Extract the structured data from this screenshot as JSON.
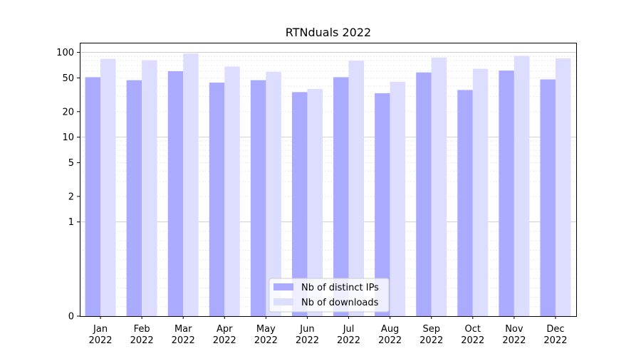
{
  "chart_data": {
    "type": "bar",
    "title": "RTNduals 2022",
    "xlabel": "",
    "ylabel": "",
    "yscale": "symlog",
    "ylim": [
      0,
      130
    ],
    "yticks": [
      0,
      1,
      2,
      5,
      10,
      20,
      50,
      100
    ],
    "grid": "horizontal",
    "legend_position": "bottom-center",
    "categories": [
      [
        "Jan",
        "2022"
      ],
      [
        "Feb",
        "2022"
      ],
      [
        "Mar",
        "2022"
      ],
      [
        "Apr",
        "2022"
      ],
      [
        "May",
        "2022"
      ],
      [
        "Jun",
        "2022"
      ],
      [
        "Jul",
        "2022"
      ],
      [
        "Aug",
        "2022"
      ],
      [
        "Sep",
        "2022"
      ],
      [
        "Oct",
        "2022"
      ],
      [
        "Nov",
        "2022"
      ],
      [
        "Dec",
        "2022"
      ]
    ],
    "series": [
      {
        "name": "Nb of distinct IPs",
        "color": "#aaaaff",
        "values": [
          51,
          47,
          60,
          44,
          47,
          34,
          51,
          33,
          58,
          36,
          61,
          48
        ]
      },
      {
        "name": "Nb of downloads",
        "color": "#ddddff",
        "values": [
          84,
          81,
          97,
          68,
          59,
          37,
          80,
          45,
          87,
          64,
          91,
          85
        ]
      }
    ]
  }
}
